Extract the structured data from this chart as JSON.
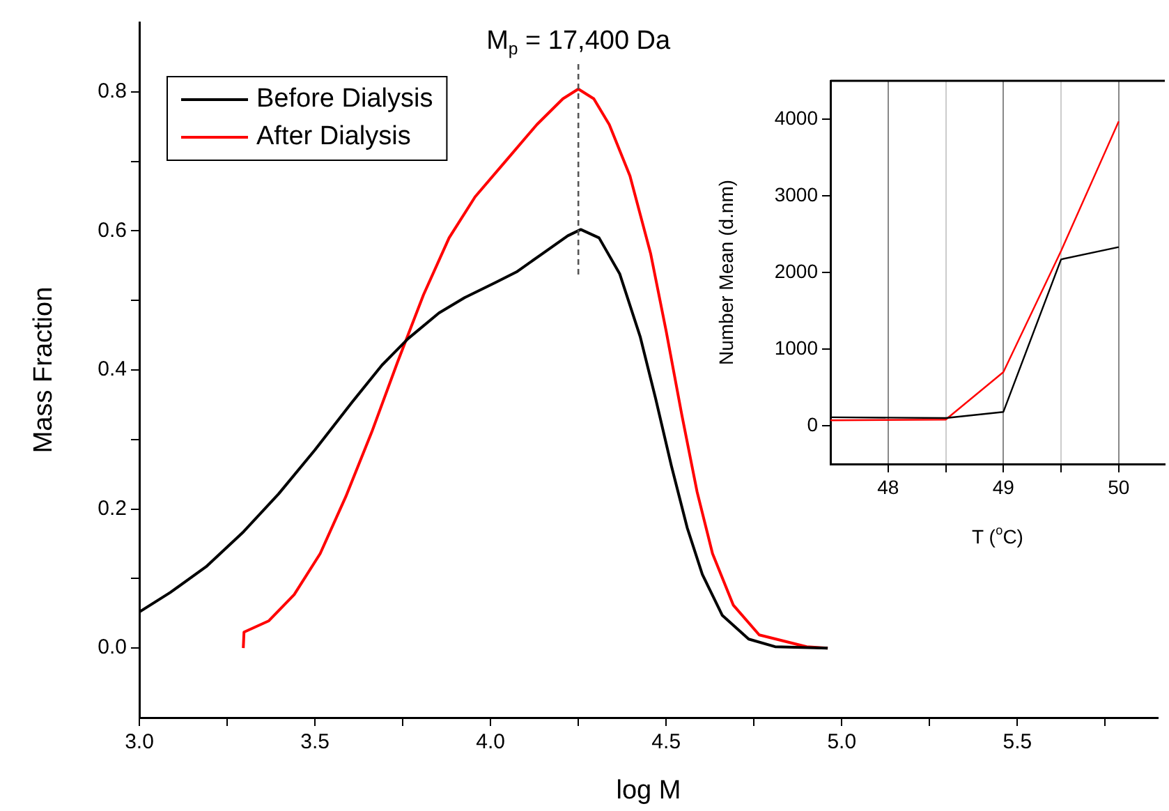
{
  "chart_data": [
    {
      "type": "line",
      "xlabel": "log M",
      "ylabel": "Mass Fraction",
      "legend": "top left",
      "xlim": [
        3.0,
        5.9
      ],
      "xticks": [
        {
          "value": 3,
          "label": "3.0"
        },
        {
          "value": 3.25,
          "label": null
        },
        3.5,
        {
          "value": 3.75,
          "label": null
        },
        {
          "value": 4,
          "label": "4.0"
        },
        {
          "value": 4.25,
          "label": null
        },
        4.5,
        {
          "value": 4.75,
          "label": null
        },
        {
          "value": 5,
          "label": "5.0"
        },
        {
          "value": 5.25,
          "label": null
        },
        5.5,
        {
          "value": 5.75,
          "label": null
        }
      ],
      "ylim": [
        -0.1,
        0.9
      ],
      "yticks": [
        {
          "value": 0,
          "label": "0.0"
        },
        {
          "value": 0.1,
          "label": null
        },
        0.2,
        {
          "value": 0.3,
          "label": null
        },
        0.4,
        {
          "value": 0.5,
          "label": null
        },
        0.6,
        {
          "value": 0.7,
          "label": null
        },
        0.8
      ],
      "grid": false,
      "ref_lines": [
        {
          "axis": "x",
          "value": 4.25,
          "line_style": "dashed",
          "color": "#555555"
        }
      ],
      "annotations": [
        "M$_{p}$ = 17,400 Da"
      ],
      "series": [
        {
          "name": "Before Dialysis",
          "color": "#000000",
          "x": [
            3.0,
            3.088,
            3.19,
            3.294,
            3.397,
            3.5,
            3.603,
            3.691,
            3.765,
            3.853,
            3.926,
            4.015,
            4.074,
            4.147,
            4.22,
            4.257,
            4.309,
            4.368,
            4.426,
            4.47,
            4.515,
            4.56,
            4.603,
            4.66,
            4.735,
            4.81,
            4.96
          ],
          "values": [
            0.052,
            0.08,
            0.117,
            0.166,
            0.222,
            0.285,
            0.352,
            0.407,
            0.445,
            0.482,
            0.504,
            0.526,
            0.541,
            0.567,
            0.593,
            0.602,
            0.59,
            0.538,
            0.448,
            0.359,
            0.262,
            0.173,
            0.106,
            0.047,
            0.013,
            0.002,
            0.0
          ]
        },
        {
          "name": "After Dialysis",
          "color": "#ff0000",
          "x": [
            3.296,
            3.298,
            3.368,
            3.441,
            3.515,
            3.588,
            3.662,
            3.735,
            3.809,
            3.882,
            3.956,
            4.044,
            4.132,
            4.206,
            4.25,
            4.294,
            4.338,
            4.397,
            4.456,
            4.5,
            4.544,
            4.588,
            4.632,
            4.691,
            4.765,
            4.9,
            4.96
          ],
          "values": [
            0.0,
            0.023,
            0.039,
            0.077,
            0.136,
            0.218,
            0.311,
            0.411,
            0.508,
            0.59,
            0.649,
            0.701,
            0.753,
            0.79,
            0.804,
            0.79,
            0.753,
            0.679,
            0.567,
            0.456,
            0.337,
            0.225,
            0.136,
            0.062,
            0.019,
            0.002,
            0.0
          ]
        }
      ]
    },
    {
      "type": "line",
      "xlabel": "T ($^{o}$C)",
      "ylabel": "Number Mean (d.nm)",
      "legend": false,
      "grid": "x",
      "xlim": [
        47.5,
        50.4
      ],
      "xticks": [
        48,
        {
          "value": 48.5,
          "label": null
        },
        49,
        {
          "value": 49.5,
          "label": null
        },
        50
      ],
      "ylim": [
        -500,
        4500
      ],
      "yticks": [
        0,
        1000,
        2000,
        3000,
        4000
      ],
      "series": [
        {
          "color": "#000000",
          "x": [
            47.5,
            48.5,
            49,
            49.5,
            50
          ],
          "values": [
            110,
            100,
            180,
            2170,
            2330
          ]
        },
        {
          "color": "#ff0000",
          "x": [
            47.5,
            48.5,
            49,
            49.5,
            50
          ],
          "values": [
            70,
            80,
            700,
            2280,
            3970
          ]
        }
      ]
    }
  ]
}
